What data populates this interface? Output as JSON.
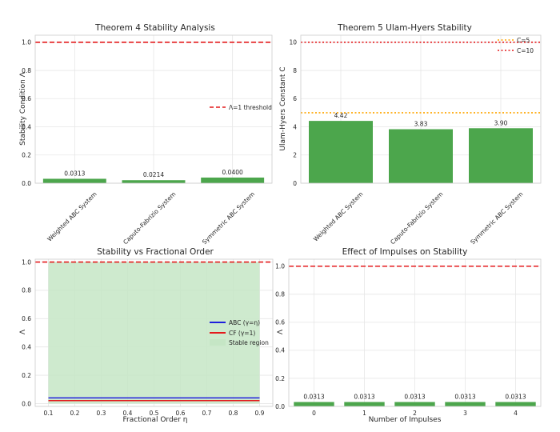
{
  "chart_data": [
    {
      "type": "bar",
      "title": "Theorem 4 Stability Analysis",
      "xlabel": "",
      "ylabel": "Stability Condition Λ",
      "categories": [
        "Weighted ABC System",
        "Caputo-Fabrizio System",
        "Symmetric ABC System"
      ],
      "values": [
        0.0313,
        0.0214,
        0.04
      ],
      "value_labels": [
        "0.0313",
        "0.0214",
        "0.0400"
      ],
      "ylim": [
        0,
        1.05
      ],
      "yticks": [
        "0.0",
        "0.2",
        "0.4",
        "0.6",
        "0.8",
        "1.0"
      ],
      "reference_lines": [
        {
          "y": 1.0,
          "label": "Λ=1 threshold",
          "color": "#e41a1c",
          "style": "dashed"
        }
      ],
      "bar_color": "#4ca64c",
      "legend_position": "right"
    },
    {
      "type": "bar",
      "title": "Theorem 5 Ulam-Hyers Stability",
      "xlabel": "",
      "ylabel": "Ulam-Hyers Constant C",
      "categories": [
        "Weighted ABC System",
        "Caputo-Fabrizio System",
        "Symmetric ABC System"
      ],
      "values": [
        4.42,
        3.83,
        3.9
      ],
      "value_labels": [
        "4.42",
        "3.83",
        "3.90"
      ],
      "ylim": [
        0,
        10.5
      ],
      "yticks": [
        "0",
        "2",
        "4",
        "6",
        "8",
        "10"
      ],
      "reference_lines": [
        {
          "y": 5,
          "label": "C=5",
          "color": "#ffa500",
          "style": "dotted"
        },
        {
          "y": 10,
          "label": "C=10",
          "color": "#e41a1c",
          "style": "dotted"
        }
      ],
      "bar_color": "#4ca64c",
      "legend_position": "top-right"
    },
    {
      "type": "line",
      "title": "Stability vs Fractional Order",
      "xlabel": "Fractional Order η",
      "ylabel": "Λ",
      "x": [
        0.1,
        0.2,
        0.3,
        0.4,
        0.5,
        0.6,
        0.7,
        0.8,
        0.9
      ],
      "xticks": [
        "0.1",
        "0.2",
        "0.3",
        "0.4",
        "0.5",
        "0.6",
        "0.7",
        "0.8",
        "0.9"
      ],
      "xlim": [
        0.05,
        0.95
      ],
      "ylim": [
        -0.02,
        1.02
      ],
      "yticks": [
        "0.0",
        "0.2",
        "0.4",
        "0.6",
        "0.8",
        "1.0"
      ],
      "series": [
        {
          "name": "ABC (γ=η)",
          "color": "#1f1fdd",
          "values": [
            0.04,
            0.04,
            0.04,
            0.04,
            0.04,
            0.04,
            0.04,
            0.04,
            0.04
          ]
        },
        {
          "name": "CF (γ=1)",
          "color": "#e41a1c",
          "values": [
            0.021,
            0.021,
            0.021,
            0.021,
            0.021,
            0.021,
            0.021,
            0.021,
            0.021
          ]
        }
      ],
      "shaded_region": {
        "label": "Stable region",
        "y0": 0,
        "y1": 1.0,
        "x0": 0.1,
        "x1": 0.9,
        "color": "#c5e6c5"
      },
      "reference_lines": [
        {
          "y": 1.0,
          "color": "#e41a1c",
          "style": "dashed"
        }
      ],
      "legend_position": "right"
    },
    {
      "type": "bar",
      "title": "Effect of Impulses on Stability",
      "xlabel": "Number of Impulses",
      "ylabel": "Λ",
      "categories": [
        "0",
        "1",
        "2",
        "3",
        "4"
      ],
      "values": [
        0.0313,
        0.0313,
        0.0313,
        0.0313,
        0.0313
      ],
      "value_labels": [
        "0.0313",
        "0.0313",
        "0.0313",
        "0.0313",
        "0.0313"
      ],
      "ylim": [
        0,
        1.05
      ],
      "yticks": [
        "0.0",
        "0.2",
        "0.4",
        "0.6",
        "0.8",
        "1.0"
      ],
      "reference_lines": [
        {
          "y": 1.0,
          "color": "#e41a1c",
          "style": "dashed"
        }
      ],
      "bar_color": "#4ca64c"
    }
  ]
}
